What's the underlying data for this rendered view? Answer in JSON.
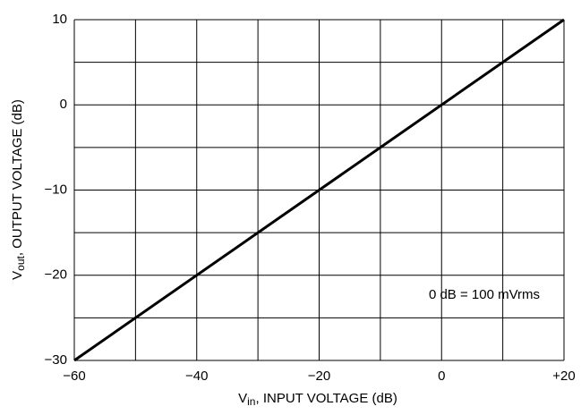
{
  "chart_data": {
    "type": "line",
    "x_label": {
      "main": "V",
      "sub": "in",
      "rest": ", INPUT VOLTAGE (dB)"
    },
    "y_label": {
      "main": "V",
      "sub": "out",
      "rest": ", OUTPUT VOLTAGE (dB)"
    },
    "annotation": "0 dB = 100 mVrms",
    "x": [
      -60,
      20
    ],
    "series": [
      {
        "name": "Vout",
        "color": "#000000",
        "values": [
          -30,
          10
        ]
      }
    ],
    "xlim": [
      -60,
      20
    ],
    "ylim": [
      -30,
      10
    ],
    "xticks": [
      {
        "value": -60,
        "label": "−60"
      },
      {
        "value": -40,
        "label": "−40"
      },
      {
        "value": -20,
        "label": "−20"
      },
      0,
      {
        "value": 20,
        "label": "+20"
      }
    ],
    "yticks": [
      {
        "value": -30,
        "label": "−30"
      },
      {
        "value": -20,
        "label": "−20"
      },
      {
        "value": -10,
        "label": "−10"
      },
      0,
      10
    ],
    "xminor": [
      -50,
      -30,
      -10,
      10
    ],
    "yminor": [
      -25,
      -15,
      -5,
      5
    ],
    "grid": true
  }
}
